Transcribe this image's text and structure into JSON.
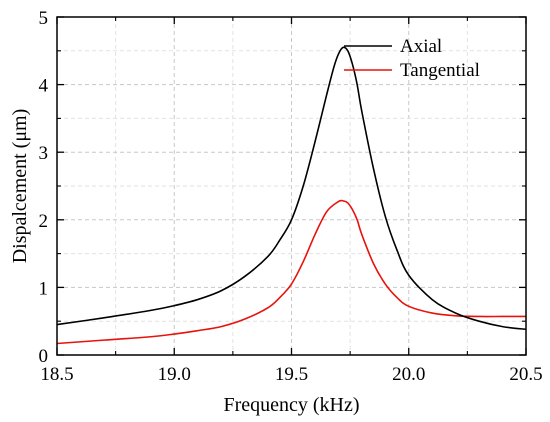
{
  "chart_data": {
    "type": "line",
    "title": "",
    "xlabel": "Frequency (kHz)",
    "ylabel": "Dispalcement (μm)",
    "xlim": [
      18.5,
      20.5
    ],
    "ylim": [
      0,
      5
    ],
    "x_ticks": [
      18.5,
      19.0,
      19.5,
      20.0,
      20.5
    ],
    "x_tick_labels": [
      "18.5",
      "19.0",
      "19.5",
      "20.0",
      "20.5"
    ],
    "y_ticks": [
      0,
      1,
      2,
      3,
      4,
      5
    ],
    "y_tick_labels": [
      "0",
      "1",
      "2",
      "3",
      "4",
      "5"
    ],
    "grid": true,
    "legend_position": "top-right",
    "series": [
      {
        "name": "Axial",
        "color": "#000000",
        "x": [
          18.5,
          18.7,
          18.9,
          19.0,
          19.1,
          19.2,
          19.3,
          19.4,
          19.45,
          19.5,
          19.55,
          19.6,
          19.65,
          19.68,
          19.7,
          19.72,
          19.74,
          19.76,
          19.78,
          19.8,
          19.85,
          19.9,
          19.95,
          20.0,
          20.1,
          20.2,
          20.3,
          20.4,
          20.5
        ],
        "y": [
          0.45,
          0.55,
          0.66,
          0.73,
          0.82,
          0.95,
          1.16,
          1.46,
          1.7,
          2.0,
          2.5,
          3.15,
          3.85,
          4.25,
          4.45,
          4.55,
          4.5,
          4.3,
          4.0,
          3.6,
          2.75,
          2.05,
          1.55,
          1.18,
          0.82,
          0.62,
          0.5,
          0.42,
          0.38
        ]
      },
      {
        "name": "Tangential",
        "color": "#e8120c",
        "x": [
          18.5,
          18.7,
          18.9,
          19.0,
          19.1,
          19.2,
          19.3,
          19.4,
          19.45,
          19.5,
          19.55,
          19.6,
          19.65,
          19.7,
          19.72,
          19.74,
          19.76,
          19.78,
          19.8,
          19.85,
          19.9,
          19.95,
          20.0,
          20.1,
          20.2,
          20.3,
          20.4,
          20.5
        ],
        "y": [
          0.17,
          0.22,
          0.27,
          0.31,
          0.36,
          0.42,
          0.53,
          0.7,
          0.85,
          1.05,
          1.38,
          1.78,
          2.12,
          2.27,
          2.28,
          2.25,
          2.15,
          2.0,
          1.78,
          1.35,
          1.05,
          0.85,
          0.72,
          0.62,
          0.58,
          0.57,
          0.57,
          0.57
        ]
      }
    ]
  }
}
